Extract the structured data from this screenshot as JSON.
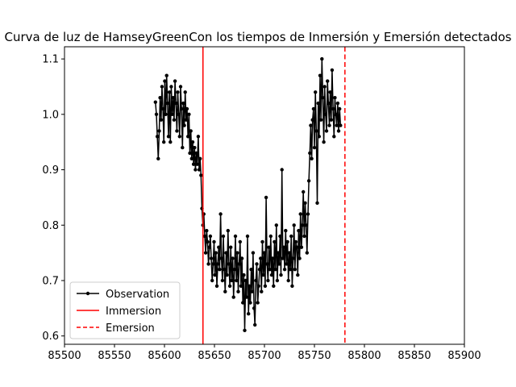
{
  "chart_data": {
    "type": "line",
    "title": "Curva de luz de HamseyGreenCon los tiempos de Inmersión y Emersión detectados",
    "xlabel": "",
    "ylabel": "",
    "xlim": [
      85500,
      85900
    ],
    "ylim": [
      0.585,
      1.122
    ],
    "xticks": [
      "85500",
      "85550",
      "85600",
      "85650",
      "85700",
      "85750",
      "85800",
      "85850",
      "85900"
    ],
    "yticks": [
      "0.6",
      "0.7",
      "0.8",
      "0.9",
      "1.0",
      "1.1"
    ],
    "grid": false,
    "legend_position": "lower-left",
    "series": [
      {
        "name": "Observation",
        "color": "#000000",
        "marker": "circle",
        "x_start": 85591,
        "x_step": 0.93,
        "y": [
          1.022,
          1.0,
          0.96,
          0.92,
          0.97,
          1.03,
          0.99,
          1.05,
          1.01,
          0.95,
          1.06,
          1.0,
          1.07,
          1.02,
          0.96,
          1.04,
          0.95,
          1.05,
          1.0,
          1.03,
          0.99,
          1.06,
          1.02,
          0.97,
          1.04,
          1.0,
          0.96,
          1.05,
          1.01,
          0.94,
          1.02,
          0.98,
          1.04,
          0.99,
          1.01,
          0.96,
          1.0,
          0.93,
          0.97,
          0.92,
          0.95,
          0.91,
          0.94,
          0.9,
          0.93,
          0.91,
          0.96,
          0.9,
          0.92,
          0.89,
          0.83,
          0.8,
          0.82,
          0.78,
          0.75,
          0.79,
          0.77,
          0.73,
          0.76,
          0.78,
          0.74,
          0.7,
          0.73,
          0.77,
          0.71,
          0.75,
          0.69,
          0.73,
          0.76,
          0.72,
          0.82,
          0.74,
          0.7,
          0.78,
          0.72,
          0.68,
          0.75,
          0.71,
          0.79,
          0.73,
          0.69,
          0.76,
          0.7,
          0.74,
          0.67,
          0.72,
          0.78,
          0.7,
          0.75,
          0.68,
          0.73,
          0.77,
          0.69,
          0.74,
          0.66,
          0.71,
          0.61,
          0.7,
          0.67,
          0.78,
          0.64,
          0.69,
          0.66,
          0.72,
          0.68,
          0.75,
          0.65,
          0.62,
          0.7,
          0.73,
          0.66,
          0.69,
          0.72,
          0.74,
          0.68,
          0.77,
          0.71,
          0.75,
          0.69,
          0.85,
          0.73,
          0.7,
          0.76,
          0.72,
          0.78,
          0.71,
          0.74,
          0.69,
          0.77,
          0.72,
          0.8,
          0.7,
          0.75,
          0.73,
          0.78,
          0.71,
          0.9,
          0.74,
          0.76,
          0.72,
          0.79,
          0.73,
          0.77,
          0.7,
          0.75,
          0.72,
          0.78,
          0.69,
          0.74,
          0.8,
          0.72,
          0.77,
          0.76,
          0.71,
          0.79,
          0.74,
          0.82,
          0.76,
          0.8,
          0.86,
          0.78,
          0.84,
          0.8,
          0.75,
          0.82,
          0.88,
          0.93,
          0.98,
          0.92,
          0.99,
          1.01,
          0.94,
          1.04,
          0.97,
          0.84,
          1.02,
          0.96,
          1.07,
          0.99,
          1.1,
          1.03,
          0.95,
          1.05,
          1.0,
          0.97,
          1.06,
          1.02,
          0.98,
          1.04,
          0.99,
          1.08,
          1.01,
          0.96,
          1.03,
          1.0,
          0.98,
          1.02,
          0.97,
          1.01,
          0.98
        ]
      },
      {
        "name": "Immersion",
        "color": "#ff0000",
        "style": "solid",
        "x": 85638.5
      },
      {
        "name": "Emersion",
        "color": "#ff0000",
        "style": "dashed",
        "x": 85780.5
      }
    ]
  }
}
